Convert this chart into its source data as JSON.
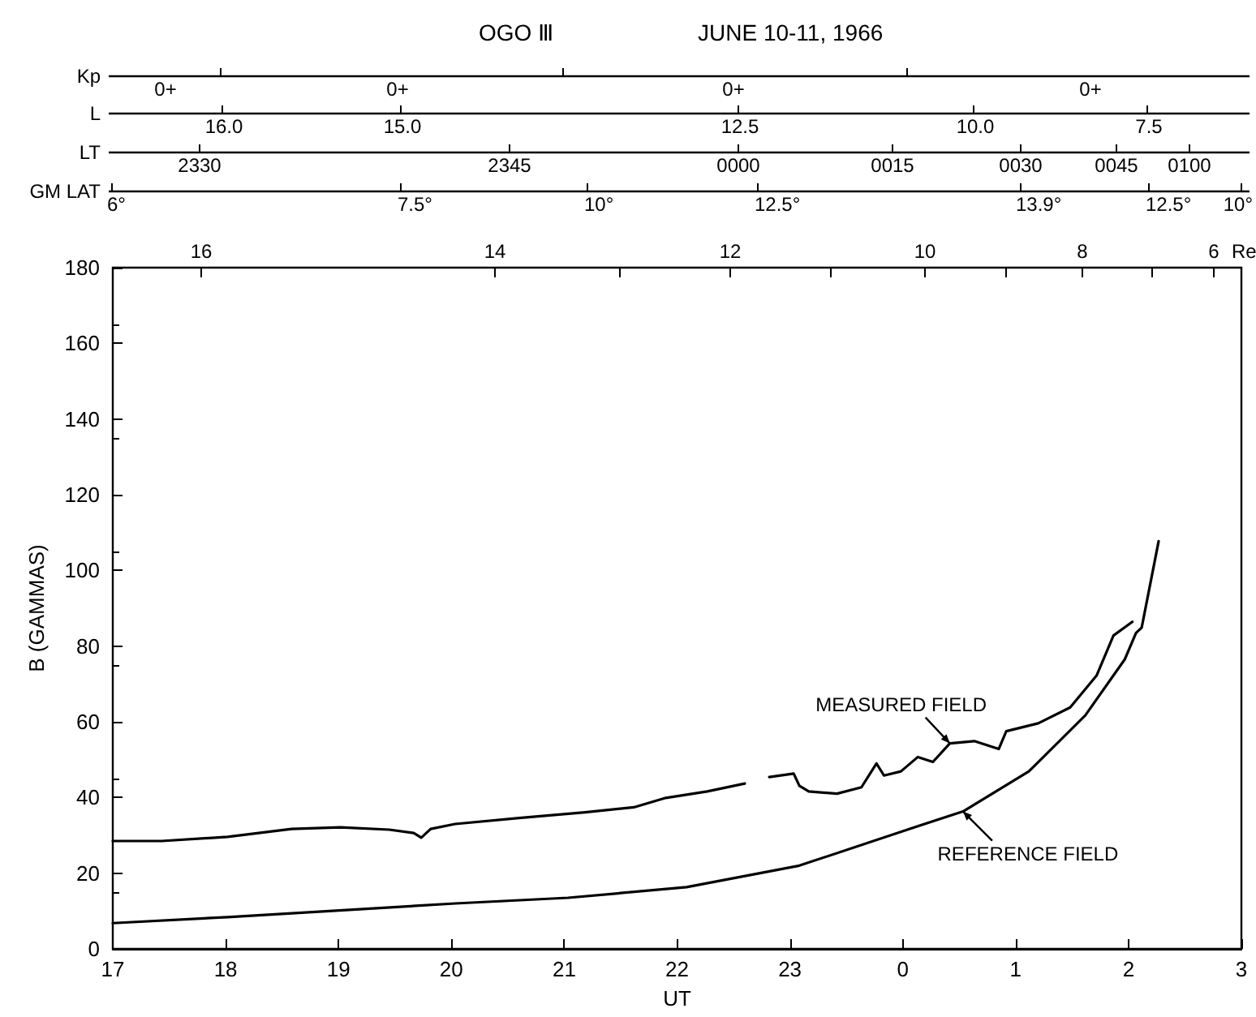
{
  "chart_data": {
    "type": "line",
    "title": "OGO Ⅲ",
    "subtitle": "JUNE 10-11, 1966",
    "xlabel": "UT",
    "ylabel": "B (GAMMAS)",
    "xlim": [
      "1966-06-10T17:00",
      "1966-06-11T03:00"
    ],
    "xticks": [
      {
        "value": "1966-06-10T17:00",
        "label": "17"
      },
      {
        "value": "1966-06-10T18:00",
        "label": "18"
      },
      {
        "value": "1966-06-10T19:00",
        "label": "19"
      },
      {
        "value": "1966-06-10T20:00",
        "label": "20"
      },
      {
        "value": "1966-06-10T21:00",
        "label": "21"
      },
      {
        "value": "1966-06-10T22:00",
        "label": "22"
      },
      {
        "value": "1966-06-10T23:00",
        "label": "23"
      },
      {
        "value": "1966-06-11T00:00",
        "label": "0"
      },
      {
        "value": "1966-06-11T01:00",
        "label": "1"
      },
      {
        "value": "1966-06-11T02:00",
        "label": "2"
      },
      {
        "value": "1966-06-11T03:00",
        "label": "3"
      }
    ],
    "ylim": [
      0,
      180
    ],
    "yticks": [
      0,
      20,
      40,
      60,
      80,
      100,
      120,
      140,
      160,
      180
    ],
    "series": [
      {
        "color": "#000000",
        "x": [
          "1966-06-10T17:00",
          "1966-06-10T17:26",
          "1966-06-10T18:01",
          "1966-06-10T18:35",
          "1966-06-10T19:01",
          "1966-06-10T19:27",
          "1966-06-10T19:40",
          "1966-06-10T19:44",
          "1966-06-10T19:49",
          "1966-06-10T20:02",
          "1966-06-10T20:36",
          "1966-06-10T21:11",
          "1966-06-10T21:37",
          "1966-06-10T21:54",
          "1966-06-10T22:16",
          "1966-06-10T22:36",
          "1966-06-10T22:39",
          "1966-06-10T22:49",
          "1966-06-10T23:02",
          "1966-06-10T23:05",
          "1966-06-10T23:10",
          "1966-06-10T23:25",
          "1966-06-10T23:38",
          "1966-06-10T23:46",
          "1966-06-10T23:50",
          "1966-06-10T23:59",
          "1966-06-11T00:08",
          "1966-06-11T00:16",
          "1966-06-11T00:25",
          "1966-06-11T00:38",
          "1966-06-11T00:51",
          "1966-06-11T00:55",
          "1966-06-11T01:12",
          "1966-06-11T01:29",
          "1966-06-11T01:43",
          "1966-06-11T01:52",
          "1966-06-11T02:02"
        ],
        "values": [
          28.5,
          28.5,
          29.6,
          31.7,
          32.1,
          31.5,
          30.6,
          29.4,
          31.7,
          33.0,
          34.6,
          36.1,
          37.4,
          39.9,
          41.6,
          43.7,
          null,
          45.4,
          46.3,
          43.1,
          41.6,
          41.0,
          42.7,
          49.0,
          45.8,
          46.9,
          50.7,
          49.4,
          54.3,
          54.9,
          52.8,
          57.5,
          59.6,
          63.8,
          72.2,
          82.8,
          86.4
        ]
      },
      {
        "color": "#000000",
        "x": [
          "1966-06-10T17:00",
          "1966-06-10T18:01",
          "1966-06-10T20:02",
          "1966-06-10T21:02",
          "1966-06-10T22:05",
          "1966-06-10T23:05",
          "1966-06-11T00:06",
          "1966-06-11T00:32",
          "1966-06-11T01:07",
          "1966-06-11T01:37",
          "1966-06-11T01:58",
          "1966-06-11T02:04",
          "1966-06-11T02:07",
          "1966-06-11T02:16"
        ],
        "values": [
          6.8,
          8.4,
          12.0,
          13.5,
          16.3,
          22.0,
          32.1,
          36.3,
          46.9,
          61.7,
          76.5,
          83.5,
          84.9,
          107.7
        ]
      }
    ],
    "annotations": [
      "Kp",
      "0+",
      "0+",
      "0+",
      "0+",
      "L",
      "16.0",
      "15.0",
      "12.5",
      "10.0",
      "7.5",
      "LT",
      "2330",
      "2345",
      "0000",
      "0015",
      "0030",
      "0045",
      "0100",
      "GM LAT",
      "6°",
      "7.5°",
      "10°",
      "12.5°",
      "13.9°",
      "12.5°",
      "10°",
      "Re",
      "16",
      "14",
      "12",
      "10",
      "8",
      "6",
      {
        "text": "MEASURED FIELD",
        "x": "1966-06-11T00:25",
        "y": 54.3
      },
      {
        "text": "REFERENCE FIELD",
        "x": "1966-06-11T00:32",
        "y": 36.3
      }
    ],
    "grid": false,
    "marker": "none",
    "line_style": "solid"
  }
}
